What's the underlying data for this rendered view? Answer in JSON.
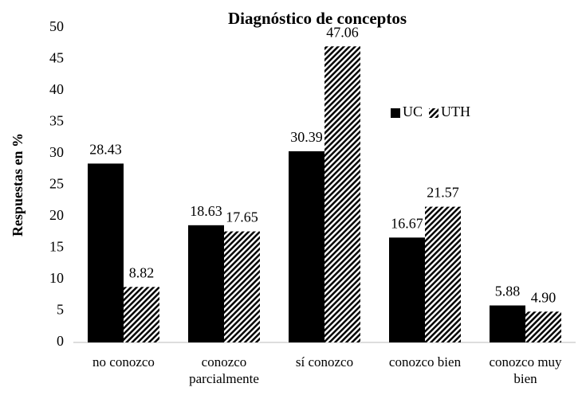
{
  "chart_data": {
    "type": "bar",
    "title": "Diagnóstico de conceptos",
    "y_label": "Respuestas en %",
    "categories": [
      "no conozco",
      "conozco parcialmente",
      "sí conozco",
      "conozco bien",
      "conozco muy bien"
    ],
    "series": [
      {
        "name": "UC",
        "color": "#000000",
        "hatch": false,
        "values": [
          28.43,
          18.63,
          30.39,
          16.67,
          5.88
        ],
        "value_labels": [
          "28.43",
          "18.63",
          "30.39",
          "16.67",
          "5.88"
        ]
      },
      {
        "name": "UTH",
        "color": "#000000",
        "hatch": true,
        "values": [
          8.82,
          17.65,
          47.06,
          21.57,
          4.9
        ],
        "value_labels": [
          "8.82",
          "17.65",
          "47.06",
          "21.57",
          "4.90"
        ]
      }
    ],
    "ylim": [
      0,
      50
    ],
    "yticks": [
      0,
      5,
      10,
      15,
      20,
      25,
      30,
      35,
      40,
      45,
      50
    ],
    "grid": false,
    "legend": "upper right"
  }
}
